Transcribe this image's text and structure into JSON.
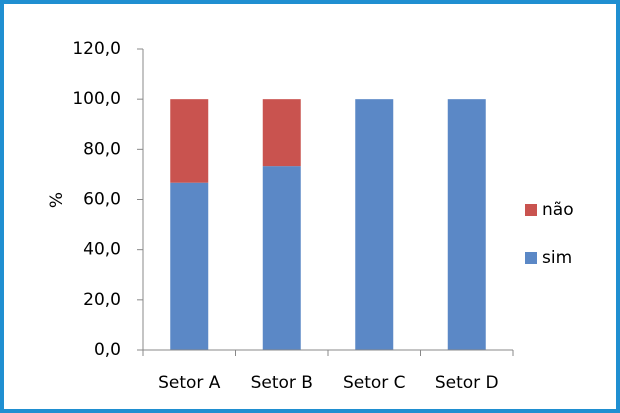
{
  "chart_data": {
    "type": "stacked_bar",
    "y_label": "%",
    "categories": [
      "Setor A",
      "Setor B",
      "Setor C",
      "Setor D"
    ],
    "series": [
      {
        "name": "sim",
        "color": "#5b88c6",
        "values": [
          66.7,
          73.3,
          100,
          100
        ]
      },
      {
        "name": "não",
        "color": "#c9534f",
        "values": [
          33.3,
          26.7,
          0,
          0
        ]
      }
    ],
    "ylim": [
      0,
      120
    ],
    "yticks": [
      {
        "value": 0,
        "label": "0,0"
      },
      {
        "value": 20,
        "label": "20,0"
      },
      {
        "value": 40,
        "label": "40,0"
      },
      {
        "value": 60,
        "label": "60,0"
      },
      {
        "value": 80,
        "label": "80,0"
      },
      {
        "value": 100,
        "label": "100,0"
      },
      {
        "value": 120,
        "label": "120,0"
      }
    ],
    "grid": false,
    "legend": "right"
  }
}
